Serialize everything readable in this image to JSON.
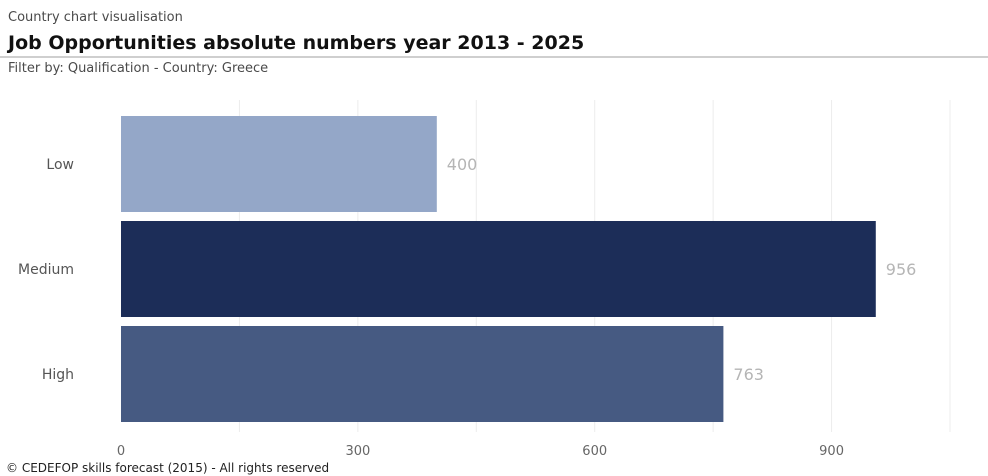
{
  "header": {
    "kicker": "Country chart visualisation",
    "title": "Job Opportunities absolute numbers year 2013 - 2025",
    "filter": "Filter by: Qualification - Country: Greece"
  },
  "footer": {
    "copyright": "© CEDEFOP skills forecast (2015) - All rights reserved"
  },
  "chart_data": {
    "type": "bar",
    "orientation": "horizontal",
    "categories": [
      "Low",
      "Medium",
      "High"
    ],
    "values": [
      400,
      956,
      763
    ],
    "colors": [
      "#94a7c8",
      "#1c2d58",
      "#465a82"
    ],
    "xticks": [
      0,
      300,
      600,
      900
    ],
    "xlim": [
      0,
      1050
    ],
    "grid": true,
    "data_labels": true
  }
}
